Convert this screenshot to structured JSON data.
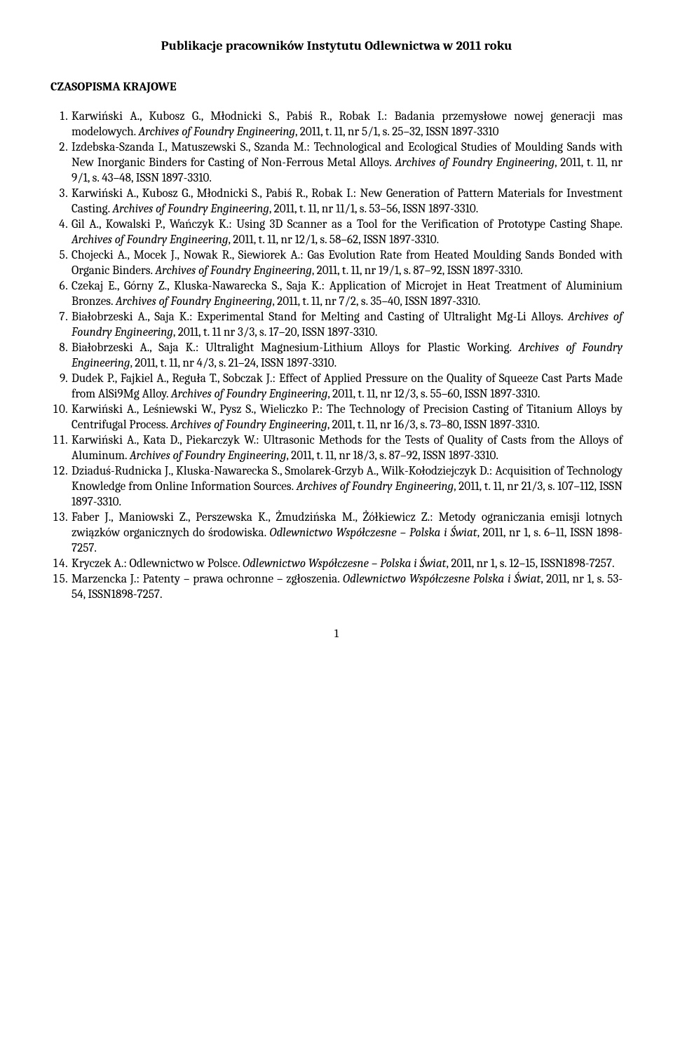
{
  "title": "Publikacje pracowników Instytutu Odlewnictwa w 2011 roku",
  "section_heading": "CZASOPISMA KRAJOWE",
  "page_number": "1",
  "entries": [
    {
      "authors": "Karwiński A., Kubosz G., Młodnicki S., Pabiś R., Robak I.: ",
      "title": "Badania przemysłowe nowej generacji mas modelowych. ",
      "journal": "Archives of Foundry Engineering",
      "rest": ", 2011, t. 11, nr 5/1, s. 25–32, ISSN 1897-3310"
    },
    {
      "authors": "Izdebska-Szanda I., Matuszewski S., Szanda M.: ",
      "title": "Technological and Ecological Studies of Moulding Sands with New Inorganic Binders for Casting of Non-Ferrous Metal Alloys. ",
      "journal": "Archives of Foundry Engineering",
      "rest": ", 2011, t. 11, nr 9/1, s. 43–48, ISSN 1897-3310."
    },
    {
      "authors": "Karwiński A., Kubosz G., Młodnicki S., Pabiś R., Robak I.: ",
      "title": "New Generation of Pattern Materials for Investment Casting. ",
      "journal": "Archives of Foundry Engineering",
      "rest": ", 2011, t. 11, nr 11/1, s. 53–56, ISSN 1897-3310."
    },
    {
      "authors": "Gil A., Kowalski P., Wańczyk K.: ",
      "title": "Using 3D Scanner as a Tool for the Verification of Prototype Casting Shape. ",
      "journal": "Archives of Foundry Engineering",
      "rest": ", 2011, t. 11, nr 12/1, s. 58–62, ISSN 1897-3310."
    },
    {
      "authors": "Chojecki A., Mocek J., Nowak R., Siewiorek A.: ",
      "title": "Gas Evolution Rate from Heated Moulding Sands Bonded with Organic Binders. ",
      "journal": "Archives of Foundry Engineering",
      "rest": ", 2011, t. 11, nr 19/1, s. 87–92, ISSN 1897-3310."
    },
    {
      "authors": "Czekaj E., Górny Z., Kluska-Nawarecka S., Saja K.: ",
      "title": "Application of Microjet in Heat Treatment of Aluminium Bronzes. ",
      "journal": "Archives of Foundry Engineering",
      "rest": ", 2011, t. 11, nr 7/2, s. 35–40, ISSN 1897-3310."
    },
    {
      "authors": "Białobrzeski A., Saja K.: ",
      "title": "Experimental Stand for Melting and Casting of Ultralight Mg-Li Alloys. ",
      "journal": "Archives of Foundry Engineering",
      "rest": ", 2011, t. 11 nr 3/3, s. 17–20, ISSN 1897-3310."
    },
    {
      "authors": "Białobrzeski A., Saja K.: ",
      "title": "Ultralight Magnesium-Lithium Alloys for Plastic Working. ",
      "journal": "Archives of Foundry Engineering",
      "rest": ", 2011, t. 11, nr 4/3, s. 21–24, ISSN 1897-3310."
    },
    {
      "authors": "Dudek P., Fajkiel A., Reguła T., Sobczak J.: ",
      "title": "Effect of Applied Pressure on the Quality of Squeeze Cast Parts Made from AlSi9Mg Alloy. ",
      "journal": "Archives of Foundry Engineering",
      "rest": ", 2011, t. 11, nr 12/3, s. 55–60, ISSN 1897-3310."
    },
    {
      "authors": "Karwiński A., Leśniewski W., Pysz S., Wieliczko P.: ",
      "title": "The Technology of Precision Casting of Titanium Alloys by Centrifugal Process. ",
      "journal": "Archives of Foundry Engineering",
      "rest": ", 2011, t. 11, nr 16/3, s. 73–80, ISSN 1897-3310."
    },
    {
      "authors": "Karwiński A., Kata D., Piekarczyk W.: ",
      "title": "Ultrasonic Methods for the Tests of Quality of Casts from the Alloys of Aluminum. ",
      "journal": "Archives of Foundry Engineering",
      "rest": ", 2011, t. 11, nr 18/3, s. 87–92, ISSN 1897-3310."
    },
    {
      "authors": "Dziaduś-Rudnicka J., Kluska-Nawarecka S., Smolarek-Grzyb A., Wilk-Kołodziejczyk D.: ",
      "title": "Acquisition of Technology Knowledge from Online Information Sources. ",
      "journal": "Archives of Foundry Engineering",
      "rest": ", 2011, t. 11, nr 21/3, s. 107–112, ISSN 1897-3310."
    },
    {
      "authors": "Faber J., Maniowski Z., Perszewska K., Żmudzińska M., Żółkiewicz Z.: ",
      "title": "Metody ograniczania emisji lotnych związków organicznych do środowiska. ",
      "journal": "Odlewnictwo Współczesne – Polska i Świat",
      "rest": ", 2011, nr 1, s. 6–11, ISSN 1898-7257."
    },
    {
      "authors": "Kryczek A.: ",
      "title": "Odlewnictwo w Polsce. ",
      "journal": "Odlewnictwo Współczesne – Polska i Świat",
      "rest": ", 2011, nr 1, s. 12–15, ISSN1898-7257."
    },
    {
      "authors": "Marzencka J.: ",
      "title": "Patenty – prawa ochronne – zgłoszenia. ",
      "journal": "Odlewnictwo Współczesne Polska i Świat",
      "rest": ", 2011, nr 1, s. 53-54, ISSN1898-7257."
    }
  ]
}
